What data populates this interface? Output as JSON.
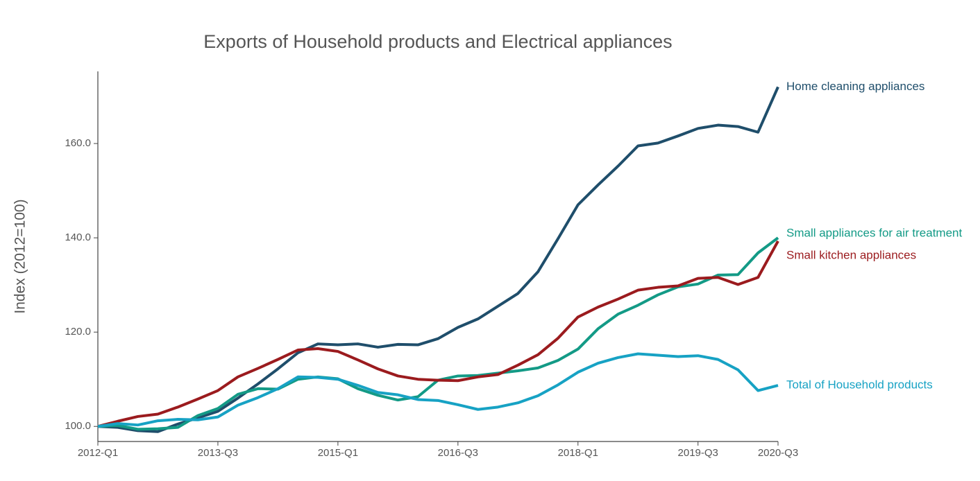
{
  "chart_data": {
    "type": "line",
    "title": "Exports of Household products and Electrical appliances",
    "y_label": "Index (2012=100)",
    "categories": [
      "2012-Q1",
      null,
      null,
      null,
      null,
      null,
      "2013-Q3",
      null,
      null,
      null,
      null,
      null,
      "2015-Q1",
      null,
      null,
      null,
      null,
      null,
      "2016-Q3",
      null,
      null,
      null,
      null,
      null,
      "2018-Q1",
      null,
      null,
      null,
      null,
      null,
      "2019-Q3",
      null,
      null,
      null,
      "2020-Q3"
    ],
    "ylim": [
      96.8,
      175.3
    ],
    "yticks": [
      {
        "value": 100,
        "label": "100.0"
      },
      {
        "value": 120,
        "label": "120.0"
      },
      {
        "value": 140,
        "label": "140.0"
      },
      {
        "value": 160,
        "label": "160.0"
      }
    ],
    "series": [
      {
        "name": "Home cleaning appliances",
        "color": "#1f4e6b",
        "values": [
          100,
          99.8,
          99.1,
          98.9,
          100.5,
          101.8,
          103.2,
          106.0,
          109.0,
          112.2,
          115.6,
          117.5,
          117.3,
          117.5,
          116.8,
          117.4,
          117.3,
          118.6,
          121.0,
          122.8,
          125.5,
          128.2,
          132.8,
          139.8,
          147.0,
          151.2,
          155.2,
          159.5,
          160.1,
          161.6,
          163.2,
          163.9,
          163.6,
          162.4,
          172.0
        ]
      },
      {
        "name": "Small appliances for air treatment",
        "color": "#139a86",
        "values": [
          100,
          100.2,
          99.4,
          99.5,
          99.8,
          102.3,
          103.8,
          106.8,
          108.0,
          107.9,
          110.0,
          110.5,
          110.1,
          108.0,
          106.6,
          105.6,
          106.3,
          109.8,
          110.7,
          110.8,
          111.3,
          111.8,
          112.4,
          114.0,
          116.4,
          120.7,
          123.8,
          125.7,
          127.9,
          129.6,
          130.2,
          132.1,
          132.2,
          136.8,
          140.0
        ]
      },
      {
        "name": "Small kitchen appliances",
        "color": "#9b1b1e",
        "values": [
          100,
          101.1,
          102.1,
          102.6,
          104.1,
          105.8,
          107.6,
          110.5,
          112.3,
          114.2,
          116.2,
          116.5,
          115.9,
          114.1,
          112.2,
          110.7,
          110.0,
          109.8,
          109.7,
          110.5,
          111.0,
          113.0,
          115.2,
          118.7,
          123.2,
          125.3,
          127.0,
          128.9,
          129.5,
          129.8,
          131.4,
          131.6,
          130.1,
          131.6,
          139.3
        ]
      },
      {
        "name": "Total of Household products",
        "color": "#17a2c4",
        "values": [
          100,
          100.6,
          100.3,
          101.2,
          101.5,
          101.4,
          102.0,
          104.5,
          106.1,
          108.0,
          110.5,
          110.4,
          110.0,
          108.7,
          107.2,
          106.7,
          105.7,
          105.5,
          104.6,
          103.6,
          104.1,
          105.0,
          106.5,
          108.8,
          111.5,
          113.4,
          114.6,
          115.4,
          115.1,
          114.8,
          115.0,
          114.2,
          112.0,
          107.6,
          108.7
        ]
      }
    ]
  }
}
